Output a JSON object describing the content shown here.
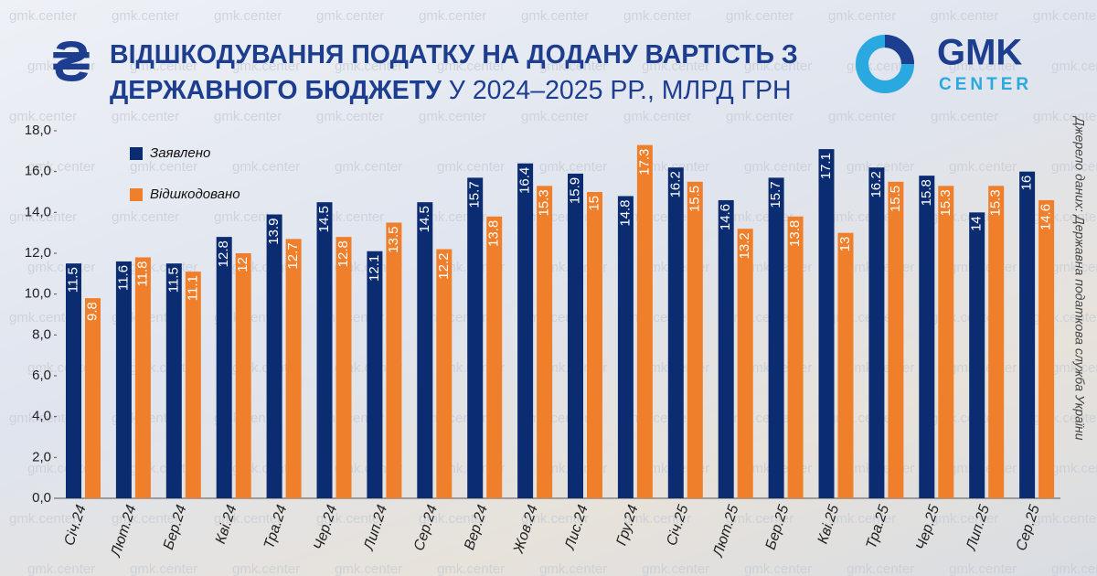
{
  "chart_data": {
    "type": "bar",
    "title": "ВІДШКОДУВАННЯ ПОДАТКУ НА ДОДАНУ ВАРТІСТЬ З ДЕРЖАВНОГО БЮДЖЕТУ",
    "subtitle": "У 2024–2025 РР., МЛРД ГРН",
    "title_icon": "₴",
    "logo": {
      "top": "GMK",
      "bottom": "CENTER"
    },
    "watermark": "gmk.center",
    "source": "Джерело даних: Державна податкова служба України",
    "categories": [
      "Січ.24",
      "Лют.24",
      "Бер.24",
      "Кві.24",
      "Тра.24",
      "Чер.24",
      "Лип.24",
      "Сер.24",
      "Вер.24",
      "Жов.24",
      "Лис.24",
      "Гру.24",
      "Січ.25",
      "Лют.25",
      "Бер.25",
      "Кві.25",
      "Тра.25",
      "Чер.25",
      "Лип.25",
      "Сер.25"
    ],
    "series": [
      {
        "name": "Заявлено",
        "color": "#0c2c72",
        "values": [
          11.5,
          11.6,
          11.5,
          12.8,
          13.9,
          14.5,
          12.1,
          14.5,
          15.7,
          16.4,
          15.9,
          14.8,
          16.2,
          14.6,
          15.7,
          17.1,
          16.2,
          15.8,
          14,
          16
        ]
      },
      {
        "name": "Відшкодовано",
        "color": "#f07f2c",
        "values": [
          9.8,
          11.8,
          11.1,
          12,
          12.7,
          12.8,
          13.5,
          12.2,
          13.8,
          15.3,
          15,
          17.3,
          15.5,
          13.2,
          13.8,
          13,
          15.5,
          15.3,
          15.3,
          14.6
        ]
      }
    ],
    "ylim": [
      0,
      18
    ],
    "yticks": [
      {
        "value": 0,
        "label": "0,0"
      },
      {
        "value": 2,
        "label": "2,0"
      },
      {
        "value": 4,
        "label": "4,0"
      },
      {
        "value": 6,
        "label": "6,0"
      },
      {
        "value": 8,
        "label": "8,0"
      },
      {
        "value": 10,
        "label": "10,0"
      },
      {
        "value": 12,
        "label": "12,0"
      },
      {
        "value": 14,
        "label": "14,0"
      },
      {
        "value": 16,
        "label": "16,0"
      },
      {
        "value": 18,
        "label": "18,0"
      }
    ],
    "grid": false,
    "legend": "top-left"
  }
}
